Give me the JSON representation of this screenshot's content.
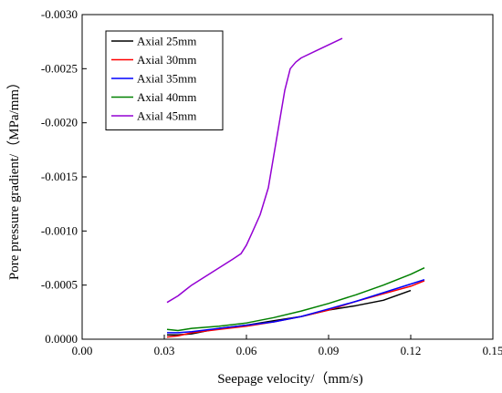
{
  "chart_data": {
    "type": "line",
    "title": "",
    "xlabel": "Seepage velocity/（mm/s)",
    "ylabel": "Pore pressure gradient/（MPa/mm）",
    "xlim": [
      0.0,
      0.15
    ],
    "ylim": [
      0.0,
      -0.003
    ],
    "x_ticks": [
      "0.00",
      "0.03",
      "0.06",
      "0.09",
      "0.12",
      "0.15"
    ],
    "y_ticks": [
      "0.0000",
      "-0.0005",
      "-0.0010",
      "-0.0015",
      "-0.0020",
      "-0.0025",
      "-0.0030"
    ],
    "y_tick_values": [
      0.0,
      -0.0005,
      -0.001,
      -0.0015,
      -0.002,
      -0.0025,
      -0.003
    ],
    "x_tick_values": [
      0.0,
      0.03,
      0.06,
      0.09,
      0.12,
      0.15
    ],
    "grid": false,
    "legend_position": "top-left",
    "series": [
      {
        "name": "Axial 25mm",
        "color": "#000000",
        "x": [
          0.031,
          0.035,
          0.04,
          0.05,
          0.06,
          0.07,
          0.08,
          0.09,
          0.1,
          0.11,
          0.12
        ],
        "y": [
          -4e-05,
          -4e-05,
          -5e-05,
          -0.0001,
          -0.00013,
          -0.00017,
          -0.00021,
          -0.00027,
          -0.00031,
          -0.00036,
          -0.00045
        ]
      },
      {
        "name": "Axial 30mm",
        "color": "#ff0000",
        "x": [
          0.031,
          0.035,
          0.04,
          0.05,
          0.06,
          0.07,
          0.08,
          0.09,
          0.1,
          0.11,
          0.12,
          0.125
        ],
        "y": [
          -2e-05,
          -3e-05,
          -6e-05,
          -9e-05,
          -0.00012,
          -0.00016,
          -0.00021,
          -0.00027,
          -0.00035,
          -0.00042,
          -0.00049,
          -0.00054
        ]
      },
      {
        "name": "Axial 35mm",
        "color": "#0000ff",
        "x": [
          0.031,
          0.035,
          0.04,
          0.05,
          0.06,
          0.07,
          0.08,
          0.09,
          0.1,
          0.11,
          0.12,
          0.125
        ],
        "y": [
          -6e-05,
          -6e-05,
          -7e-05,
          -0.0001,
          -0.00013,
          -0.00016,
          -0.00021,
          -0.00028,
          -0.00035,
          -0.00043,
          -0.00051,
          -0.00055
        ]
      },
      {
        "name": "Axial 40mm",
        "color": "#008000",
        "x": [
          0.031,
          0.035,
          0.04,
          0.05,
          0.06,
          0.07,
          0.08,
          0.09,
          0.1,
          0.11,
          0.12,
          0.125
        ],
        "y": [
          -9e-05,
          -8e-05,
          -0.0001,
          -0.00012,
          -0.00015,
          -0.0002,
          -0.00026,
          -0.00033,
          -0.00041,
          -0.0005,
          -0.0006,
          -0.00066
        ]
      },
      {
        "name": "Axial 45mm",
        "color": "#9400d3",
        "x": [
          0.031,
          0.035,
          0.038,
          0.04,
          0.045,
          0.05,
          0.055,
          0.058,
          0.06,
          0.062,
          0.065,
          0.068,
          0.07,
          0.072,
          0.074,
          0.076,
          0.078,
          0.08,
          0.085,
          0.09,
          0.095
        ],
        "y": [
          -0.00034,
          -0.0004,
          -0.00046,
          -0.0005,
          -0.00058,
          -0.00066,
          -0.00074,
          -0.00079,
          -0.00087,
          -0.00098,
          -0.00115,
          -0.0014,
          -0.0017,
          -0.002,
          -0.0023,
          -0.0025,
          -0.00256,
          -0.0026,
          -0.00266,
          -0.00272,
          -0.00278
        ]
      }
    ]
  }
}
